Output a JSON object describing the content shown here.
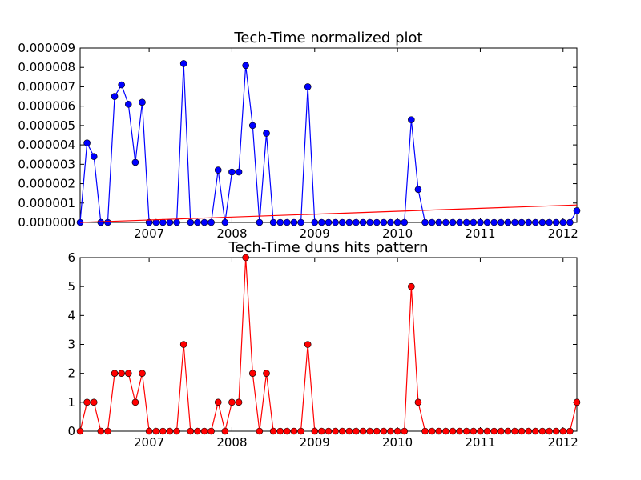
{
  "chart_data": [
    {
      "type": "line",
      "title": "Tech-Time normalized plot",
      "xlabel": "",
      "ylabel": "",
      "xlim": [
        "2006-03",
        "2012-03"
      ],
      "ylim": [
        0,
        9e-06
      ],
      "x_ticks": [
        "2007",
        "2008",
        "2009",
        "2010",
        "2011",
        "2012"
      ],
      "y_ticks": [
        "0.000000",
        "0.000001",
        "0.000002",
        "0.000003",
        "0.000004",
        "0.000005",
        "0.000006",
        "0.000007",
        "0.000008",
        "0.000009"
      ],
      "grid": false,
      "series": [
        {
          "color": "#0000ff",
          "marker": "circle",
          "x": [
            "2006-03",
            "2006-04",
            "2006-05",
            "2006-06",
            "2006-07",
            "2006-08",
            "2006-09",
            "2006-10",
            "2006-11",
            "2006-12",
            "2007-01",
            "2007-02",
            "2007-03",
            "2007-04",
            "2007-05",
            "2007-06",
            "2007-07",
            "2007-08",
            "2007-09",
            "2007-10",
            "2007-11",
            "2007-12",
            "2008-01",
            "2008-02",
            "2008-03",
            "2008-04",
            "2008-05",
            "2008-06",
            "2008-07",
            "2008-08",
            "2008-09",
            "2008-10",
            "2008-11",
            "2008-12",
            "2009-01",
            "2009-02",
            "2009-03",
            "2009-04",
            "2009-05",
            "2009-06",
            "2009-07",
            "2009-08",
            "2009-09",
            "2009-10",
            "2009-11",
            "2009-12",
            "2010-01",
            "2010-02",
            "2010-03",
            "2010-04",
            "2010-05",
            "2010-06",
            "2010-07",
            "2010-08",
            "2010-09",
            "2010-10",
            "2010-11",
            "2010-12",
            "2011-01",
            "2011-02",
            "2011-03",
            "2011-04",
            "2011-05",
            "2011-06",
            "2011-07",
            "2011-08",
            "2011-09",
            "2011-10",
            "2011-11",
            "2011-12",
            "2012-01",
            "2012-02",
            "2012-03"
          ],
          "values": [
            0,
            4.1e-06,
            3.4e-06,
            0,
            0,
            6.5e-06,
            7.1e-06,
            6.1e-06,
            3.1e-06,
            6.2e-06,
            0,
            0,
            0,
            0,
            0,
            8.2e-06,
            0,
            0,
            0,
            0,
            2.7e-06,
            0,
            2.6e-06,
            2.6e-06,
            8.1e-06,
            5e-06,
            0,
            4.6e-06,
            0,
            0,
            0,
            0,
            0,
            7e-06,
            0,
            0,
            0,
            0,
            0,
            0,
            0,
            0,
            0,
            0,
            0,
            0,
            0,
            0,
            5.3e-06,
            1.7e-06,
            0,
            0,
            0,
            0,
            0,
            0,
            0,
            0,
            0,
            0,
            0,
            0,
            0,
            0,
            0,
            0,
            0,
            0,
            0,
            0,
            0,
            0,
            6e-07
          ]
        },
        {
          "color": "#ff0000",
          "marker": "none",
          "x": [
            "2006-03",
            "2012-03"
          ],
          "values": [
            0,
            9e-07
          ]
        }
      ]
    },
    {
      "type": "line",
      "title": "Tech-Time duns hits pattern",
      "xlabel": "",
      "ylabel": "",
      "xlim": [
        "2006-03",
        "2012-03"
      ],
      "ylim": [
        0,
        6
      ],
      "x_ticks": [
        "2007",
        "2008",
        "2009",
        "2010",
        "2011",
        "2012"
      ],
      "y_ticks": [
        "0",
        "1",
        "2",
        "3",
        "4",
        "5",
        "6"
      ],
      "grid": false,
      "series": [
        {
          "color": "#ff0000",
          "marker": "circle",
          "x": [
            "2006-03",
            "2006-04",
            "2006-05",
            "2006-06",
            "2006-07",
            "2006-08",
            "2006-09",
            "2006-10",
            "2006-11",
            "2006-12",
            "2007-01",
            "2007-02",
            "2007-03",
            "2007-04",
            "2007-05",
            "2007-06",
            "2007-07",
            "2007-08",
            "2007-09",
            "2007-10",
            "2007-11",
            "2007-12",
            "2008-01",
            "2008-02",
            "2008-03",
            "2008-04",
            "2008-05",
            "2008-06",
            "2008-07",
            "2008-08",
            "2008-09",
            "2008-10",
            "2008-11",
            "2008-12",
            "2009-01",
            "2009-02",
            "2009-03",
            "2009-04",
            "2009-05",
            "2009-06",
            "2009-07",
            "2009-08",
            "2009-09",
            "2009-10",
            "2009-11",
            "2009-12",
            "2010-01",
            "2010-02",
            "2010-03",
            "2010-04",
            "2010-05",
            "2010-06",
            "2010-07",
            "2010-08",
            "2010-09",
            "2010-10",
            "2010-11",
            "2010-12",
            "2011-01",
            "2011-02",
            "2011-03",
            "2011-04",
            "2011-05",
            "2011-06",
            "2011-07",
            "2011-08",
            "2011-09",
            "2011-10",
            "2011-11",
            "2011-12",
            "2012-01",
            "2012-02",
            "2012-03"
          ],
          "values": [
            0,
            1,
            1,
            0,
            0,
            2,
            2,
            2,
            1,
            2,
            0,
            0,
            0,
            0,
            0,
            3,
            0,
            0,
            0,
            0,
            1,
            0,
            1,
            1,
            6,
            2,
            0,
            2,
            0,
            0,
            0,
            0,
            0,
            3,
            0,
            0,
            0,
            0,
            0,
            0,
            0,
            0,
            0,
            0,
            0,
            0,
            0,
            0,
            5,
            1,
            0,
            0,
            0,
            0,
            0,
            0,
            0,
            0,
            0,
            0,
            0,
            0,
            0,
            0,
            0,
            0,
            0,
            0,
            0,
            0,
            0,
            0,
            1
          ]
        }
      ]
    }
  ]
}
